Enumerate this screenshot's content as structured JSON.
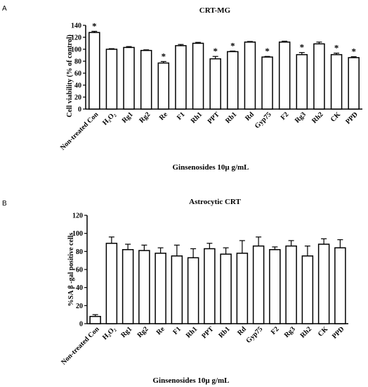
{
  "chart_data": [
    {
      "panel_label": "A",
      "type": "bar",
      "title": "CRT-MG",
      "ylabel": "Cell viability (% of control)",
      "xlabel": "Ginsenosides 10µ g/mL",
      "ylim": [
        0,
        140
      ],
      "yticks": [
        0,
        20,
        40,
        60,
        80,
        100,
        120,
        140
      ],
      "categories": [
        "Non-treated Con",
        "H₂O₂",
        "Rg1",
        "Rg2",
        "Re",
        "F1",
        "Rh1",
        "PPT",
        "Rb1",
        "Rd",
        "Gyp75",
        "F2",
        "Rg3",
        "Rh2",
        "CK",
        "PPD"
      ],
      "values": [
        128,
        100,
        103,
        98,
        77,
        106,
        110,
        84,
        96,
        112,
        87,
        112,
        91,
        109,
        91,
        86
      ],
      "errors": [
        2,
        1,
        1.5,
        1,
        2.5,
        2,
        1.5,
        4,
        1,
        1,
        1,
        1.5,
        3.5,
        3,
        2.5,
        1.5
      ],
      "significance": [
        "*",
        "",
        "",
        "",
        "*",
        "",
        "",
        "*",
        "*",
        "",
        "*",
        "",
        "*",
        "",
        "*",
        "*"
      ],
      "bar_color": "#ffffff",
      "grid": false,
      "legend": false
    },
    {
      "panel_label": "B",
      "type": "bar",
      "title": "Astrocytic CRT",
      "ylabel": "%SA β -gal positive cells",
      "xlabel": "Ginsenosides 10µ g/mL",
      "ylim": [
        0,
        120
      ],
      "yticks": [
        0,
        20,
        40,
        60,
        80,
        100,
        120
      ],
      "categories": [
        "Non-treated Con",
        "H₂O₂",
        "Rg1",
        "Rg2",
        "Re",
        "F1",
        "Rh1",
        "PPT",
        "Rb1",
        "Rd",
        "Gyp75",
        "F2",
        "Rg3",
        "Rh2",
        "CK",
        "PPD"
      ],
      "values": [
        8,
        89,
        82,
        81,
        78,
        75,
        73,
        83,
        77,
        78,
        86,
        82,
        86,
        75,
        88,
        84
      ],
      "errors": [
        2,
        7,
        6,
        6,
        6,
        12,
        10,
        6,
        7,
        14,
        10,
        3,
        6,
        11,
        6,
        9
      ],
      "significance": [
        "",
        "",
        "",
        "",
        "",
        "",
        "",
        "",
        "",
        "",
        "",
        "",
        "",
        "",
        "",
        ""
      ],
      "bar_color": "#ffffff",
      "grid": false,
      "legend": false
    }
  ]
}
